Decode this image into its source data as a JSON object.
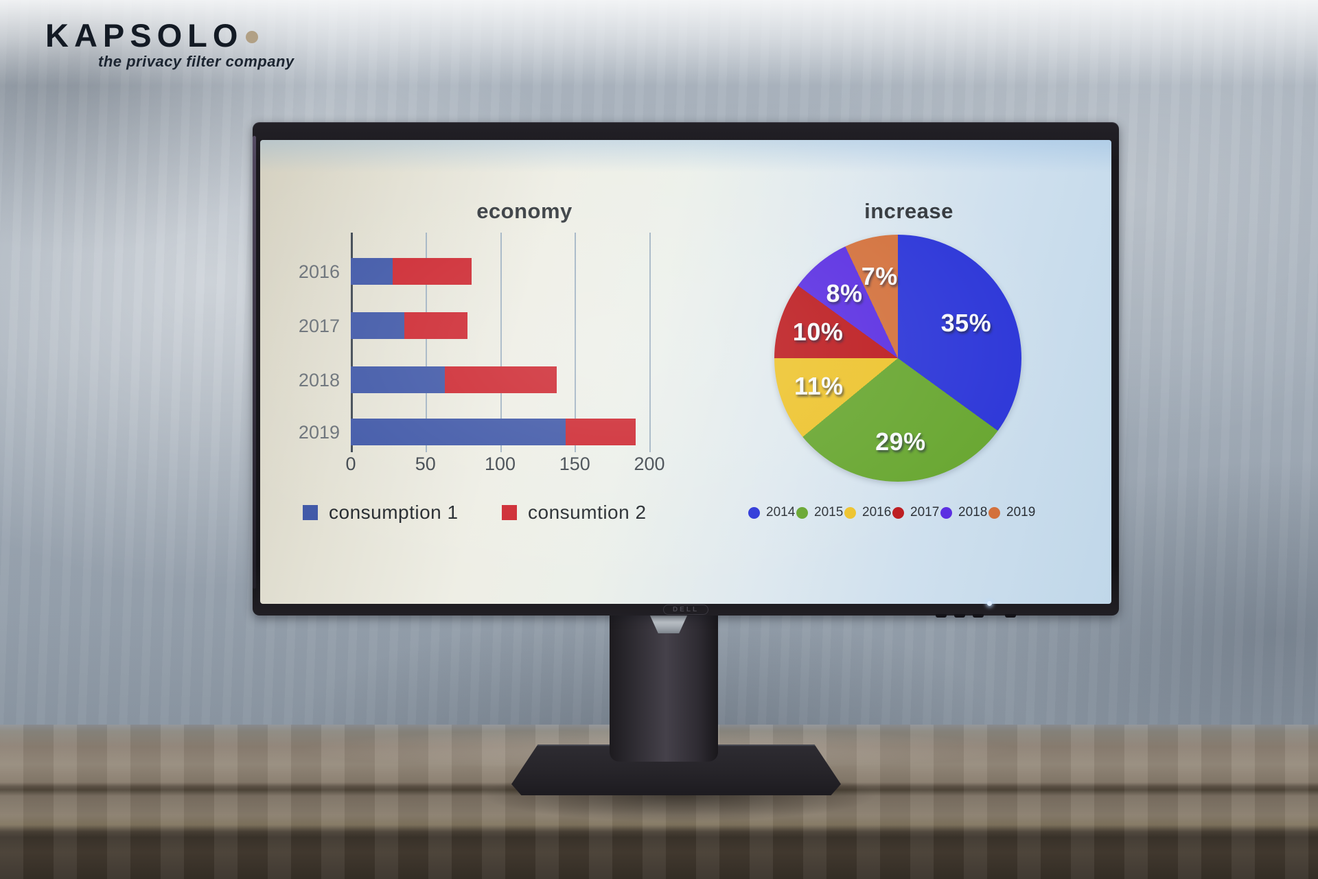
{
  "brand": {
    "logo_text": "KAPSOLO",
    "tagline": "the privacy filter company",
    "dot_color": "#b1a085"
  },
  "monitor": {
    "brand_label": "DELL"
  },
  "screen": {
    "bar_chart": {
      "title": "economy",
      "categories": [
        "2016",
        "2017",
        "2018",
        "2019"
      ],
      "series": [
        {
          "name": "consumption 1",
          "color": "#3f57a7",
          "values": [
            28,
            36,
            63,
            144
          ]
        },
        {
          "name": "consumtion 2",
          "color": "#cd2730",
          "values": [
            53,
            42,
            75,
            47
          ]
        }
      ],
      "x_ticks": [
        0,
        50,
        100,
        150,
        200
      ],
      "x_max": 200
    },
    "pie_chart": {
      "title": "increase",
      "slices": [
        {
          "label": "2014",
          "pct": 35,
          "color": "#2b35d8"
        },
        {
          "label": "2015",
          "pct": 29,
          "color": "#67a62f"
        },
        {
          "label": "2016",
          "pct": 11,
          "color": "#edc32c"
        },
        {
          "label": "2017",
          "pct": 10,
          "color": "#bc1a1e"
        },
        {
          "label": "2018",
          "pct": 8,
          "color": "#5a2ee2"
        },
        {
          "label": "2019",
          "pct": 7,
          "color": "#d3713c"
        }
      ]
    }
  },
  "chart_data": [
    {
      "type": "bar",
      "orientation": "horizontal",
      "stacked": true,
      "title": "economy",
      "categories": [
        "2016",
        "2017",
        "2018",
        "2019"
      ],
      "series": [
        {
          "name": "consumption 1",
          "values": [
            28,
            36,
            63,
            144
          ]
        },
        {
          "name": "consumtion 2",
          "values": [
            53,
            42,
            75,
            47
          ]
        }
      ],
      "xlabel": "",
      "ylabel": "",
      "xlim": [
        0,
        200
      ],
      "x_ticks": [
        0,
        50,
        100,
        150,
        200
      ],
      "grid": true,
      "legend_position": "bottom"
    },
    {
      "type": "pie",
      "title": "increase",
      "categories": [
        "2014",
        "2015",
        "2016",
        "2017",
        "2018",
        "2019"
      ],
      "values": [
        35,
        29,
        11,
        10,
        8,
        7
      ],
      "labels": [
        "35%",
        "29%",
        "11%",
        "10%",
        "8%",
        "7%"
      ],
      "legend_position": "bottom"
    }
  ]
}
